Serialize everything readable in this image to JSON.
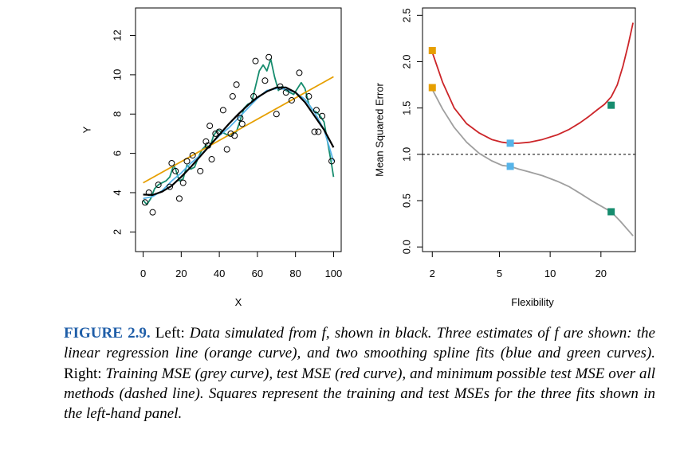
{
  "chart_data": [
    {
      "type": "scatter",
      "xlabel": "X",
      "ylabel": "Y",
      "xlim": [
        -4,
        104
      ],
      "ylim": [
        1.0,
        13.4
      ],
      "xticks": [
        0,
        20,
        40,
        60,
        80,
        100
      ],
      "yticks": [
        2,
        4,
        6,
        8,
        10,
        12
      ],
      "points": [
        [
          1,
          3.5
        ],
        [
          3,
          4
        ],
        [
          5,
          3
        ],
        [
          8,
          4.4
        ],
        [
          14,
          4.3
        ],
        [
          15,
          5.5
        ],
        [
          17,
          5.1
        ],
        [
          19,
          3.7
        ],
        [
          21,
          4.5
        ],
        [
          23,
          5.6
        ],
        [
          26,
          5.9
        ],
        [
          30,
          5.1
        ],
        [
          33,
          6.6
        ],
        [
          34,
          6.4
        ],
        [
          35,
          7.4
        ],
        [
          36,
          5.7
        ],
        [
          38,
          7.0
        ],
        [
          40,
          7.1
        ],
        [
          42,
          8.2
        ],
        [
          44,
          6.2
        ],
        [
          46,
          7.0
        ],
        [
          47,
          8.9
        ],
        [
          48,
          6.9
        ],
        [
          49,
          9.5
        ],
        [
          51,
          7.8
        ],
        [
          52,
          7.5
        ],
        [
          58,
          8.9
        ],
        [
          59,
          10.7
        ],
        [
          64,
          9.7
        ],
        [
          66,
          10.9
        ],
        [
          70,
          8.0
        ],
        [
          72,
          9.4
        ],
        [
          75,
          9.1
        ],
        [
          78,
          8.7
        ],
        [
          82,
          10.1
        ],
        [
          87,
          8.9
        ],
        [
          90,
          7.1
        ],
        [
          91,
          8.2
        ],
        [
          92,
          7.1
        ],
        [
          94,
          7.9
        ],
        [
          99,
          5.6
        ]
      ],
      "series": [
        {
          "name": "",
          "color": "#000000",
          "x": [
            0,
            5,
            10,
            15,
            20,
            25,
            30,
            35,
            40,
            45,
            50,
            55,
            60,
            65,
            70,
            75,
            80,
            85,
            90,
            95,
            100
          ],
          "y": [
            3.9,
            3.88,
            4.05,
            4.35,
            4.8,
            5.3,
            5.85,
            6.4,
            6.95,
            7.5,
            8.0,
            8.45,
            8.85,
            9.15,
            9.35,
            9.35,
            9.1,
            8.6,
            7.9,
            7.2,
            6.3
          ]
        },
        {
          "name": "",
          "color": "#E69F00",
          "x": [
            0,
            100
          ],
          "y": [
            4.5,
            9.9
          ]
        },
        {
          "name": "",
          "color": "#56B4E9",
          "x": [
            0,
            5,
            10,
            15,
            20,
            25,
            30,
            35,
            40,
            45,
            50,
            55,
            60,
            65,
            70,
            72,
            75,
            80,
            85,
            90,
            95,
            100
          ],
          "y": [
            3.7,
            3.8,
            4.1,
            4.6,
            5.0,
            5.5,
            5.9,
            6.4,
            6.9,
            7.3,
            7.8,
            8.3,
            8.8,
            9.2,
            9.3,
            9.3,
            9.25,
            9.1,
            8.75,
            8.1,
            7.2,
            5.6
          ]
        },
        {
          "name": "",
          "color": "#168C6E",
          "x": [
            0,
            2,
            4,
            6,
            8,
            10,
            12,
            14,
            16,
            17,
            19,
            21,
            23,
            25,
            27,
            29,
            31,
            33,
            35,
            37,
            39,
            41,
            43,
            45,
            47,
            49,
            51,
            53,
            55,
            57,
            59,
            61,
            63,
            65,
            67,
            69,
            71,
            73,
            75,
            77,
            79,
            81,
            83,
            85,
            87,
            89,
            91,
            93,
            95,
            97,
            99,
            100
          ],
          "y": [
            3.6,
            3.4,
            3.7,
            4.2,
            4.4,
            4.5,
            4.6,
            4.8,
            5.4,
            5.2,
            4.6,
            4.7,
            5.4,
            5.2,
            5.3,
            5.8,
            6.2,
            6.4,
            6.3,
            6.9,
            7.2,
            7.1,
            7.0,
            6.9,
            7.0,
            7.1,
            7.7,
            8.3,
            8.5,
            8.6,
            9.4,
            10.2,
            10.5,
            10.2,
            10.8,
            9.9,
            9.2,
            9.4,
            9.2,
            9.1,
            9.0,
            9.3,
            9.6,
            9.3,
            8.5,
            8.2,
            8.1,
            7.9,
            7.6,
            6.5,
            5.4,
            4.8
          ]
        }
      ]
    },
    {
      "type": "line",
      "xlabel": "Flexibility",
      "ylabel": "Mean Squared Error",
      "xscale": "log",
      "xlim": [
        1.75,
        32
      ],
      "ylim": [
        -0.05,
        2.58
      ],
      "xticks": [
        2,
        5,
        10,
        20
      ],
      "yticks": [
        "0.0",
        "0.5",
        "1.0",
        "1.5",
        "2.0",
        "2.5"
      ],
      "ytick_values": [
        0.0,
        0.5,
        1.0,
        1.5,
        2.0,
        2.5
      ],
      "reference_line": {
        "y": 1.0,
        "style": "dashed"
      },
      "series": [
        {
          "name": "",
          "color": "#CC2529",
          "x": [
            2,
            2.3,
            2.7,
            3.2,
            3.8,
            4.5,
            5.2,
            5.8,
            6.5,
            7.5,
            9,
            11,
            13,
            15,
            17,
            19,
            21,
            23,
            25,
            27,
            29,
            31
          ],
          "y": [
            2.1,
            1.78,
            1.5,
            1.33,
            1.23,
            1.16,
            1.13,
            1.12,
            1.12,
            1.13,
            1.16,
            1.21,
            1.27,
            1.34,
            1.41,
            1.48,
            1.54,
            1.62,
            1.75,
            1.95,
            2.18,
            2.42
          ]
        },
        {
          "name": "",
          "color": "#9F9F9F",
          "x": [
            2,
            2.3,
            2.7,
            3.2,
            3.8,
            4.5,
            5.2,
            5.8,
            6.5,
            7.5,
            9,
            11,
            13,
            15,
            18,
            21,
            23,
            26,
            29,
            31
          ],
          "y": [
            1.7,
            1.49,
            1.29,
            1.13,
            1.01,
            0.93,
            0.88,
            0.87,
            0.84,
            0.81,
            0.77,
            0.71,
            0.65,
            0.58,
            0.49,
            0.42,
            0.38,
            0.28,
            0.18,
            0.12
          ]
        }
      ],
      "markers": [
        {
          "x": 2,
          "y": 2.12,
          "color": "#E69F00"
        },
        {
          "x": 2,
          "y": 1.72,
          "color": "#E69F00"
        },
        {
          "x": 5.8,
          "y": 1.12,
          "color": "#56B4E9"
        },
        {
          "x": 5.8,
          "y": 0.87,
          "color": "#56B4E9"
        },
        {
          "x": 23,
          "y": 1.53,
          "color": "#168C6E"
        },
        {
          "x": 23,
          "y": 0.38,
          "color": "#168C6E"
        }
      ]
    }
  ],
  "caption": {
    "label": "FIGURE 2.9.",
    "segments": [
      {
        "text": " Left: ",
        "italic": false
      },
      {
        "text": "Data simulated from f, shown in black. Three estimates of f are shown: the linear regression line (orange curve), and two smoothing spline fits (blue and green curves).",
        "italic": true
      },
      {
        "text": " Right: ",
        "italic": false
      },
      {
        "text": "Training MSE (grey curve), test MSE (red curve), and minimum possible test MSE over all methods (dashed line). Squares represent the training and test MSEs for the three fits shown in the left-hand panel.",
        "italic": true
      }
    ]
  }
}
